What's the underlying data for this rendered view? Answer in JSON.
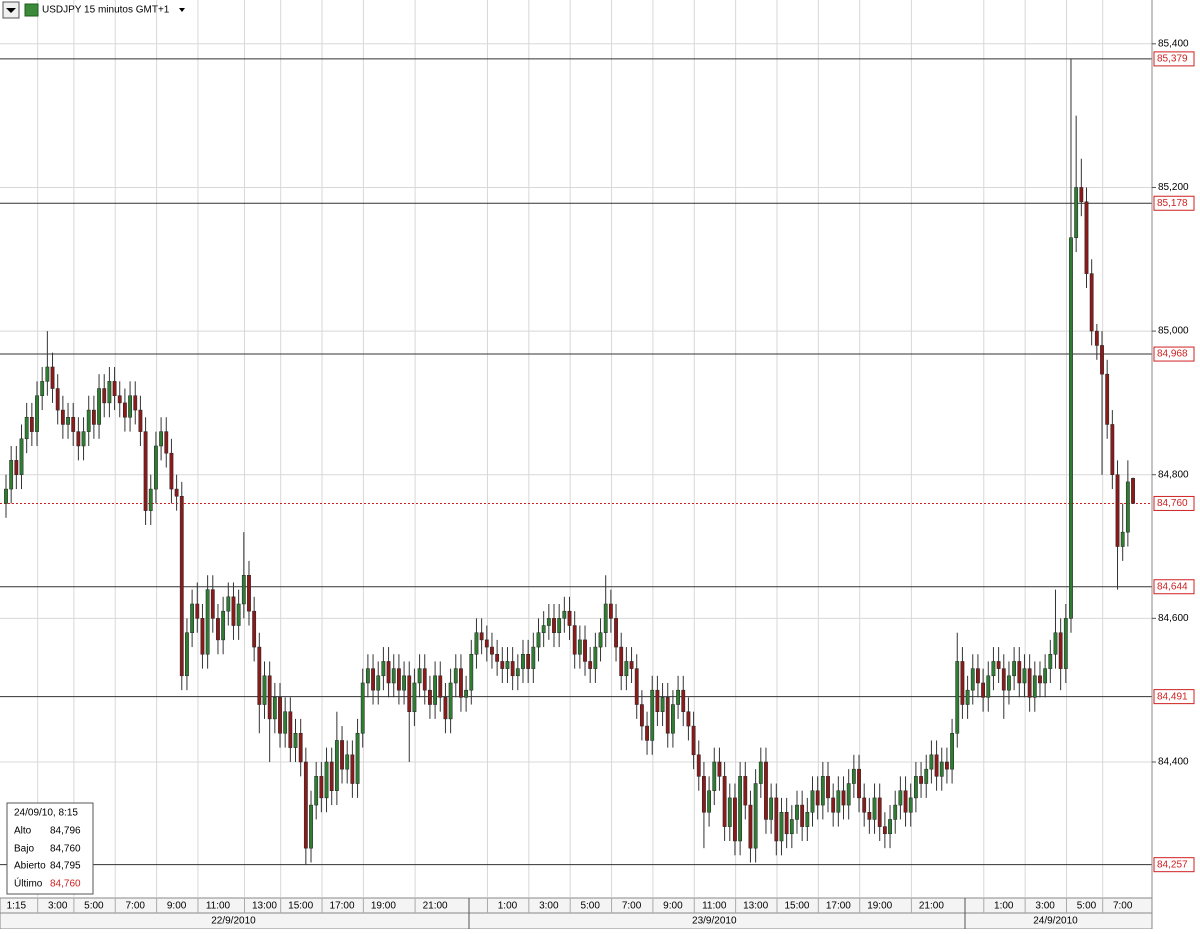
{
  "chart_data": {
    "type": "candlestick",
    "title": "USDJPY 15 minutos GMT+1",
    "up_color": "#2e7d32",
    "down_color": "#8b1a1a",
    "grid": true,
    "xlim": [
      -1.16,
      221.67
    ],
    "xticks": [
      {
        "value": 2,
        "label": "1:15"
      },
      {
        "value": 10,
        "label": "3:00"
      },
      {
        "value": 17,
        "label": "5:00"
      },
      {
        "value": 25,
        "label": "7:00"
      },
      {
        "value": 33,
        "label": "9:00"
      },
      {
        "value": 41,
        "label": "11:00"
      },
      {
        "value": 50,
        "label": "13:00"
      },
      {
        "value": 57,
        "label": "15:00"
      },
      {
        "value": 65,
        "label": "17:00"
      },
      {
        "value": 73,
        "label": "19:00"
      },
      {
        "value": 83,
        "label": "21:00"
      },
      {
        "value": 97,
        "label": "1:00"
      },
      {
        "value": 105,
        "label": "3:00"
      },
      {
        "value": 113,
        "label": "5:00"
      },
      {
        "value": 121,
        "label": "7:00"
      },
      {
        "value": 129,
        "label": "9:00"
      },
      {
        "value": 137,
        "label": "11:00"
      },
      {
        "value": 145,
        "label": "13:00"
      },
      {
        "value": 153,
        "label": "15:00"
      },
      {
        "value": 161,
        "label": "17:00"
      },
      {
        "value": 169,
        "label": "19:00"
      },
      {
        "value": 179,
        "label": "21:00"
      },
      {
        "value": 193,
        "label": "1:00"
      },
      {
        "value": 201,
        "label": "3:00"
      },
      {
        "value": 209,
        "label": "5:00"
      },
      {
        "value": 216,
        "label": "7:00"
      }
    ],
    "date_labels": [
      {
        "value": 44,
        "label": "22/9/2010"
      },
      {
        "value": 137,
        "label": "23/9/2010"
      },
      {
        "value": 203,
        "label": "24/9/2010"
      }
    ],
    "ylim": [
      84.212,
      85.461
    ],
    "yticks": [
      {
        "value": 84.4,
        "label": "84,400"
      },
      {
        "value": 84.6,
        "label": "84,600"
      },
      {
        "value": 84.8,
        "label": "84,800"
      },
      {
        "value": 85.0,
        "label": "85,000"
      },
      {
        "value": 85.2,
        "label": "85,200"
      },
      {
        "value": 85.4,
        "label": "85,400"
      }
    ],
    "levels": [
      {
        "value": 85.379,
        "label": "85,379"
      },
      {
        "value": 85.178,
        "label": "85,178"
      },
      {
        "value": 84.968,
        "label": "84,968"
      },
      {
        "value": 84.644,
        "label": "84,644"
      },
      {
        "value": 84.491,
        "label": "84,491"
      },
      {
        "value": 84.257,
        "label": "84,257"
      }
    ],
    "last": {
      "value": 84.76,
      "label": "84,760"
    },
    "candles": [
      [
        84.76,
        84.8,
        84.74,
        84.78
      ],
      [
        84.78,
        84.84,
        84.76,
        84.82
      ],
      [
        84.82,
        84.84,
        84.78,
        84.8
      ],
      [
        84.8,
        84.87,
        84.78,
        84.85
      ],
      [
        84.85,
        84.9,
        84.83,
        84.88
      ],
      [
        84.88,
        84.9,
        84.84,
        84.86
      ],
      [
        84.86,
        84.93,
        84.84,
        84.91
      ],
      [
        84.91,
        84.95,
        84.89,
        84.93
      ],
      [
        84.93,
        85.0,
        84.91,
        84.95
      ],
      [
        84.95,
        84.97,
        84.9,
        84.92
      ],
      [
        84.92,
        84.94,
        84.87,
        84.89
      ],
      [
        84.89,
        84.91,
        84.85,
        84.87
      ],
      [
        84.87,
        84.9,
        84.85,
        84.88
      ],
      [
        84.88,
        84.9,
        84.84,
        84.86
      ],
      [
        84.86,
        84.88,
        84.82,
        84.84
      ],
      [
        84.84,
        84.88,
        84.82,
        84.86
      ],
      [
        84.86,
        84.91,
        84.84,
        84.89
      ],
      [
        84.89,
        84.91,
        84.85,
        84.87
      ],
      [
        84.87,
        84.94,
        84.85,
        84.92
      ],
      [
        84.92,
        84.94,
        84.88,
        84.9
      ],
      [
        84.9,
        84.95,
        84.88,
        84.93
      ],
      [
        84.93,
        84.95,
        84.89,
        84.91
      ],
      [
        84.91,
        84.93,
        84.88,
        84.9
      ],
      [
        84.9,
        84.92,
        84.86,
        84.88
      ],
      [
        84.88,
        84.93,
        84.86,
        84.91
      ],
      [
        84.91,
        84.93,
        84.87,
        84.89
      ],
      [
        84.89,
        84.91,
        84.84,
        84.86
      ],
      [
        84.86,
        84.88,
        84.73,
        84.75
      ],
      [
        84.75,
        84.8,
        84.73,
        84.78
      ],
      [
        84.78,
        84.86,
        84.76,
        84.84
      ],
      [
        84.84,
        84.88,
        84.82,
        84.86
      ],
      [
        84.86,
        84.88,
        84.81,
        84.83
      ],
      [
        84.83,
        84.85,
        84.76,
        84.78
      ],
      [
        84.78,
        84.8,
        84.75,
        84.77
      ],
      [
        84.77,
        84.79,
        84.5,
        84.52
      ],
      [
        84.52,
        84.6,
        84.5,
        84.58
      ],
      [
        84.58,
        84.64,
        84.56,
        84.62
      ],
      [
        84.62,
        84.65,
        84.58,
        84.6
      ],
      [
        84.6,
        84.62,
        84.53,
        84.55
      ],
      [
        84.55,
        84.66,
        84.53,
        84.64
      ],
      [
        84.64,
        84.66,
        84.58,
        84.6
      ],
      [
        84.6,
        84.62,
        84.55,
        84.57
      ],
      [
        84.57,
        84.63,
        84.55,
        84.61
      ],
      [
        84.61,
        84.65,
        84.59,
        84.63
      ],
      [
        84.63,
        84.65,
        84.57,
        84.59
      ],
      [
        84.59,
        84.64,
        84.57,
        84.62
      ],
      [
        84.62,
        84.72,
        84.6,
        84.66
      ],
      [
        84.66,
        84.68,
        84.59,
        84.61
      ],
      [
        84.61,
        84.63,
        84.54,
        84.56
      ],
      [
        84.56,
        84.58,
        84.44,
        84.48
      ],
      [
        84.48,
        84.54,
        84.46,
        84.52
      ],
      [
        84.52,
        84.54,
        84.4,
        84.46
      ],
      [
        84.46,
        84.51,
        84.44,
        84.49
      ],
      [
        84.49,
        84.51,
        84.42,
        84.44
      ],
      [
        84.44,
        84.49,
        84.42,
        84.47
      ],
      [
        84.47,
        84.49,
        84.4,
        84.42
      ],
      [
        84.42,
        84.46,
        84.4,
        84.44
      ],
      [
        84.44,
        84.46,
        84.38,
        84.4
      ],
      [
        84.4,
        84.42,
        84.257,
        84.28
      ],
      [
        84.28,
        84.36,
        84.26,
        84.34
      ],
      [
        84.34,
        84.4,
        84.32,
        84.38
      ],
      [
        84.38,
        84.4,
        84.33,
        84.35
      ],
      [
        84.35,
        84.42,
        84.33,
        84.4
      ],
      [
        84.4,
        84.42,
        84.34,
        84.36
      ],
      [
        84.36,
        84.47,
        84.34,
        84.43
      ],
      [
        84.43,
        84.45,
        84.37,
        84.39
      ],
      [
        84.39,
        84.43,
        84.37,
        84.41
      ],
      [
        84.41,
        84.43,
        84.35,
        84.37
      ],
      [
        84.37,
        84.46,
        84.35,
        84.44
      ],
      [
        84.44,
        84.53,
        84.42,
        84.51
      ],
      [
        84.51,
        84.55,
        84.49,
        84.53
      ],
      [
        84.53,
        84.55,
        84.48,
        84.5
      ],
      [
        84.5,
        84.54,
        84.48,
        84.52
      ],
      [
        84.52,
        84.56,
        84.5,
        84.54
      ],
      [
        84.54,
        84.56,
        84.49,
        84.51
      ],
      [
        84.51,
        84.55,
        84.49,
        84.53
      ],
      [
        84.53,
        84.55,
        84.48,
        84.5
      ],
      [
        84.5,
        84.54,
        84.48,
        84.52
      ],
      [
        84.52,
        84.54,
        84.4,
        84.47
      ],
      [
        84.47,
        84.53,
        84.45,
        84.51
      ],
      [
        84.51,
        84.55,
        84.49,
        84.53
      ],
      [
        84.53,
        84.55,
        84.48,
        84.5
      ],
      [
        84.5,
        84.52,
        84.46,
        84.48
      ],
      [
        84.48,
        84.54,
        84.46,
        84.52
      ],
      [
        84.52,
        84.54,
        84.47,
        84.49
      ],
      [
        84.49,
        84.51,
        84.44,
        84.46
      ],
      [
        84.46,
        84.53,
        84.44,
        84.51
      ],
      [
        84.51,
        84.55,
        84.49,
        84.53
      ],
      [
        84.53,
        84.55,
        84.47,
        84.49
      ],
      [
        84.49,
        84.52,
        84.47,
        84.5
      ],
      [
        84.5,
        84.57,
        84.48,
        84.55
      ],
      [
        84.55,
        84.6,
        84.53,
        84.58
      ],
      [
        84.58,
        84.6,
        84.55,
        84.57
      ],
      [
        84.57,
        84.59,
        84.54,
        84.56
      ],
      [
        84.56,
        84.58,
        84.53,
        84.55
      ],
      [
        84.55,
        84.57,
        84.52,
        84.54
      ],
      [
        84.54,
        84.56,
        84.51,
        84.53
      ],
      [
        84.53,
        84.56,
        84.51,
        84.54
      ],
      [
        84.54,
        84.56,
        84.5,
        84.52
      ],
      [
        84.52,
        84.55,
        84.5,
        84.53
      ],
      [
        84.53,
        84.57,
        84.51,
        84.55
      ],
      [
        84.55,
        84.57,
        84.51,
        84.53
      ],
      [
        84.53,
        84.58,
        84.51,
        84.56
      ],
      [
        84.56,
        84.6,
        84.54,
        84.58
      ],
      [
        84.58,
        84.61,
        84.56,
        84.59
      ],
      [
        84.59,
        84.62,
        84.57,
        84.6
      ],
      [
        84.6,
        84.62,
        84.56,
        84.58
      ],
      [
        84.58,
        84.62,
        84.56,
        84.6
      ],
      [
        84.6,
        84.63,
        84.58,
        84.61
      ],
      [
        84.61,
        84.63,
        84.57,
        84.59
      ],
      [
        84.59,
        84.61,
        84.53,
        84.55
      ],
      [
        84.55,
        84.59,
        84.53,
        84.57
      ],
      [
        84.57,
        84.59,
        84.52,
        84.54
      ],
      [
        84.54,
        84.56,
        84.51,
        84.53
      ],
      [
        84.53,
        84.58,
        84.51,
        84.56
      ],
      [
        84.56,
        84.6,
        84.54,
        84.58
      ],
      [
        84.58,
        84.66,
        84.56,
        84.62
      ],
      [
        84.62,
        84.64,
        84.58,
        84.6
      ],
      [
        84.6,
        84.62,
        84.54,
        84.56
      ],
      [
        84.56,
        84.58,
        84.5,
        84.52
      ],
      [
        84.52,
        84.56,
        84.5,
        84.54
      ],
      [
        84.54,
        84.56,
        84.51,
        84.53
      ],
      [
        84.53,
        84.55,
        84.46,
        84.48
      ],
      [
        84.48,
        84.5,
        84.43,
        84.45
      ],
      [
        84.45,
        84.47,
        84.41,
        84.43
      ],
      [
        84.43,
        84.52,
        84.41,
        84.5
      ],
      [
        84.5,
        84.52,
        84.45,
        84.47
      ],
      [
        84.47,
        84.51,
        84.45,
        84.49
      ],
      [
        84.49,
        84.51,
        84.42,
        84.44
      ],
      [
        84.44,
        84.5,
        84.42,
        84.48
      ],
      [
        84.48,
        84.52,
        84.46,
        84.5
      ],
      [
        84.5,
        84.52,
        84.45,
        84.47
      ],
      [
        84.47,
        84.49,
        84.43,
        84.45
      ],
      [
        84.45,
        84.47,
        84.39,
        84.41
      ],
      [
        84.41,
        84.43,
        84.36,
        84.38
      ],
      [
        84.38,
        84.4,
        84.28,
        84.33
      ],
      [
        84.33,
        84.38,
        84.31,
        84.36
      ],
      [
        84.36,
        84.42,
        84.34,
        84.4
      ],
      [
        84.4,
        84.42,
        84.36,
        84.38
      ],
      [
        84.38,
        84.4,
        84.29,
        84.31
      ],
      [
        84.31,
        84.37,
        84.29,
        84.35
      ],
      [
        84.35,
        84.37,
        84.27,
        84.29
      ],
      [
        84.29,
        84.4,
        84.27,
        84.38
      ],
      [
        84.38,
        84.4,
        84.32,
        84.34
      ],
      [
        84.34,
        84.36,
        84.26,
        84.28
      ],
      [
        84.28,
        84.39,
        84.26,
        84.37
      ],
      [
        84.37,
        84.42,
        84.35,
        84.4
      ],
      [
        84.4,
        84.42,
        84.3,
        84.32
      ],
      [
        84.32,
        84.37,
        84.3,
        84.35
      ],
      [
        84.35,
        84.37,
        84.27,
        84.29
      ],
      [
        84.29,
        84.35,
        84.27,
        84.33
      ],
      [
        84.33,
        84.35,
        84.28,
        84.3
      ],
      [
        84.3,
        84.34,
        84.28,
        84.32
      ],
      [
        84.32,
        84.36,
        84.3,
        84.34
      ],
      [
        84.34,
        84.36,
        84.29,
        84.31
      ],
      [
        84.31,
        84.35,
        84.29,
        84.33
      ],
      [
        84.33,
        84.38,
        84.31,
        84.36
      ],
      [
        84.36,
        84.38,
        84.32,
        84.34
      ],
      [
        84.34,
        84.4,
        84.32,
        84.38
      ],
      [
        84.38,
        84.4,
        84.33,
        84.35
      ],
      [
        84.35,
        84.37,
        84.31,
        84.33
      ],
      [
        84.33,
        84.38,
        84.31,
        84.36
      ],
      [
        84.36,
        84.38,
        84.32,
        84.34
      ],
      [
        84.34,
        84.39,
        84.32,
        84.37
      ],
      [
        84.37,
        84.41,
        84.35,
        84.39
      ],
      [
        84.39,
        84.41,
        84.33,
        84.35
      ],
      [
        84.35,
        84.37,
        84.31,
        84.33
      ],
      [
        84.33,
        84.35,
        84.3,
        84.32
      ],
      [
        84.32,
        84.37,
        84.3,
        84.35
      ],
      [
        84.35,
        84.37,
        84.29,
        84.31
      ],
      [
        84.31,
        84.33,
        84.28,
        84.3
      ],
      [
        84.3,
        84.34,
        84.28,
        84.32
      ],
      [
        84.32,
        84.36,
        84.3,
        84.34
      ],
      [
        84.34,
        84.38,
        84.32,
        84.36
      ],
      [
        84.36,
        84.38,
        84.31,
        84.33
      ],
      [
        84.33,
        84.37,
        84.31,
        84.35
      ],
      [
        84.35,
        84.4,
        84.33,
        84.38
      ],
      [
        84.38,
        84.4,
        84.35,
        84.37
      ],
      [
        84.37,
        84.41,
        84.35,
        84.39
      ],
      [
        84.39,
        84.43,
        84.37,
        84.41
      ],
      [
        84.41,
        84.43,
        84.36,
        84.38
      ],
      [
        84.38,
        84.42,
        84.36,
        84.4
      ],
      [
        84.4,
        84.42,
        84.37,
        84.39
      ],
      [
        84.39,
        84.46,
        84.37,
        84.44
      ],
      [
        84.44,
        84.58,
        84.42,
        84.54
      ],
      [
        84.54,
        84.56,
        84.46,
        84.48
      ],
      [
        84.48,
        84.52,
        84.46,
        84.5
      ],
      [
        84.5,
        84.55,
        84.48,
        84.53
      ],
      [
        84.53,
        84.55,
        84.49,
        84.51
      ],
      [
        84.51,
        84.53,
        84.47,
        84.49
      ],
      [
        84.49,
        84.54,
        84.47,
        84.52
      ],
      [
        84.52,
        84.56,
        84.5,
        84.54
      ],
      [
        84.54,
        84.56,
        84.51,
        84.53
      ],
      [
        84.53,
        84.55,
        84.46,
        84.5
      ],
      [
        84.5,
        84.54,
        84.48,
        84.52
      ],
      [
        84.52,
        84.56,
        84.5,
        84.54
      ],
      [
        84.54,
        84.56,
        84.49,
        84.51
      ],
      [
        84.51,
        84.55,
        84.49,
        84.53
      ],
      [
        84.53,
        84.55,
        84.47,
        84.49
      ],
      [
        84.49,
        84.54,
        84.47,
        84.52
      ],
      [
        84.52,
        84.54,
        84.49,
        84.51
      ],
      [
        84.51,
        84.55,
        84.49,
        84.53
      ],
      [
        84.53,
        84.57,
        84.51,
        84.55
      ],
      [
        84.55,
        84.64,
        84.53,
        84.58
      ],
      [
        84.58,
        84.6,
        84.5,
        84.53
      ],
      [
        84.53,
        84.62,
        84.51,
        84.6
      ],
      [
        84.6,
        85.379,
        84.58,
        85.13
      ],
      [
        85.13,
        85.3,
        85.11,
        85.2
      ],
      [
        85.2,
        85.24,
        85.16,
        85.18
      ],
      [
        85.18,
        85.2,
        85.06,
        85.08
      ],
      [
        85.08,
        85.1,
        84.98,
        85.0
      ],
      [
        85.0,
        85.01,
        84.96,
        84.98
      ],
      [
        84.98,
        85.0,
        84.8,
        84.94
      ],
      [
        84.94,
        84.96,
        84.85,
        84.87
      ],
      [
        84.87,
        84.89,
        84.78,
        84.8
      ],
      [
        84.8,
        84.82,
        84.64,
        84.7
      ],
      [
        84.7,
        84.76,
        84.68,
        84.72
      ],
      [
        84.72,
        84.82,
        84.7,
        84.79
      ],
      [
        84.795,
        84.796,
        84.76,
        84.76
      ]
    ]
  },
  "info_box": {
    "date": "24/09/10, 8:15",
    "rows": [
      {
        "label": "Alto",
        "value": "84,796"
      },
      {
        "label": "Bajo",
        "value": "84,760"
      },
      {
        "label": "Abierto",
        "value": "84,795"
      },
      {
        "label": "Último",
        "value": "84,760"
      }
    ]
  }
}
